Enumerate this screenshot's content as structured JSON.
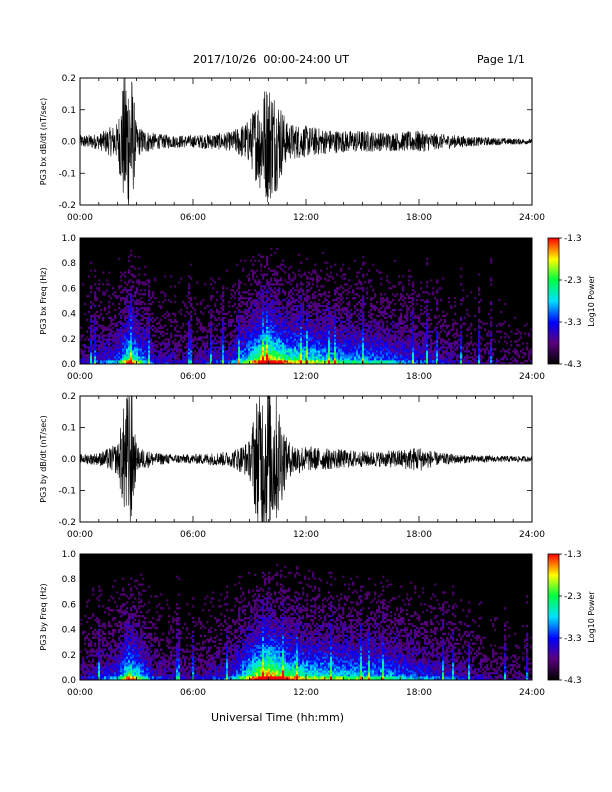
{
  "header": {
    "title": "2017/10/26  00:00-24:00 UT",
    "page": "Page 1/1"
  },
  "colors": {
    "trace": "#000000",
    "background_spec": "#000000",
    "colormap": [
      "#000000",
      "#5a0080",
      "#0000ff",
      "#00e0ff",
      "#00ff40",
      "#ffff00",
      "#ff0000"
    ]
  },
  "x_axis": {
    "label": "Universal Time (hh:mm)",
    "ticks": [
      "00:00",
      "06:00",
      "12:00",
      "18:00",
      "24:00"
    ],
    "range_hours": [
      0,
      24
    ]
  },
  "chart_data": [
    {
      "type": "line",
      "ylabel": "PG3 bx dB/dt (nT/sec)",
      "ylim": [
        -0.2,
        0.2
      ],
      "y_ticks": [
        "0.2",
        "0.1",
        "0.0",
        "-0.1",
        "-0.2"
      ],
      "x_hours": [
        0,
        1,
        2,
        2.4,
        2.7,
        3,
        4,
        5,
        6,
        7,
        8,
        9,
        9.5,
        10,
        10.5,
        11,
        12,
        13,
        14,
        15,
        16,
        17,
        18,
        19,
        20,
        21,
        22,
        23,
        24
      ],
      "amplitude": [
        0.02,
        0.025,
        0.06,
        0.25,
        0.25,
        0.05,
        0.025,
        0.02,
        0.02,
        0.025,
        0.03,
        0.07,
        0.15,
        0.2,
        0.15,
        0.06,
        0.05,
        0.04,
        0.035,
        0.035,
        0.03,
        0.03,
        0.035,
        0.025,
        0.02,
        0.015,
        0.012,
        0.01,
        0.008
      ]
    },
    {
      "type": "heatmap",
      "ylabel": "PG3 bx Freq (Hz)",
      "ylim": [
        0.0,
        1.0
      ],
      "y_ticks": [
        "1.0",
        "0.8",
        "0.6",
        "0.4",
        "0.2",
        "0.0"
      ],
      "colorbar_label": "Log10 Power",
      "colorbar_ticks": [
        "-1.3",
        "-2.3",
        "-3.3",
        "-4.3"
      ],
      "colorbar_range": [
        -4.3,
        -1.3
      ],
      "activity_hours": [
        0,
        2,
        2.6,
        4,
        6,
        8,
        9,
        10,
        11,
        12,
        14,
        16,
        18,
        20,
        22,
        24
      ],
      "activity_level": [
        0.15,
        0.3,
        0.6,
        0.2,
        0.15,
        0.25,
        0.5,
        0.75,
        0.55,
        0.5,
        0.4,
        0.35,
        0.25,
        0.15,
        0.1,
        0.08
      ]
    },
    {
      "type": "line",
      "ylabel": "PG3 by dB/dt (nT/sec)",
      "ylim": [
        -0.2,
        0.2
      ],
      "y_ticks": [
        "0.2",
        "0.1",
        "0.0",
        "-0.1",
        "-0.2"
      ],
      "x_hours": [
        0,
        1,
        2,
        2.4,
        2.7,
        3,
        4,
        5,
        6,
        7,
        8,
        9,
        9.5,
        10,
        10.5,
        11,
        12,
        13,
        14,
        15,
        16,
        17,
        18,
        19,
        20,
        21,
        22,
        23,
        24
      ],
      "amplitude": [
        0.015,
        0.02,
        0.05,
        0.2,
        0.25,
        0.04,
        0.02,
        0.015,
        0.015,
        0.02,
        0.025,
        0.06,
        0.25,
        0.25,
        0.2,
        0.06,
        0.04,
        0.035,
        0.03,
        0.025,
        0.025,
        0.03,
        0.04,
        0.02,
        0.015,
        0.012,
        0.01,
        0.01,
        0.008
      ]
    },
    {
      "type": "heatmap",
      "ylabel": "PG3 by Freq (Hz)",
      "ylim": [
        0.0,
        1.0
      ],
      "y_ticks": [
        "1.0",
        "0.8",
        "0.6",
        "0.4",
        "0.2",
        "0.0"
      ],
      "colorbar_label": "Log10 Power",
      "colorbar_ticks": [
        "-1.3",
        "-2.3",
        "-3.3",
        "-4.3"
      ],
      "colorbar_range": [
        -4.3,
        -1.3
      ],
      "activity_hours": [
        0,
        2,
        2.6,
        4,
        6,
        8,
        9,
        10,
        11,
        12,
        14,
        16,
        18,
        20,
        22,
        24
      ],
      "activity_level": [
        0.15,
        0.3,
        0.6,
        0.2,
        0.15,
        0.25,
        0.55,
        0.8,
        0.6,
        0.5,
        0.45,
        0.4,
        0.3,
        0.2,
        0.12,
        0.1
      ]
    }
  ]
}
